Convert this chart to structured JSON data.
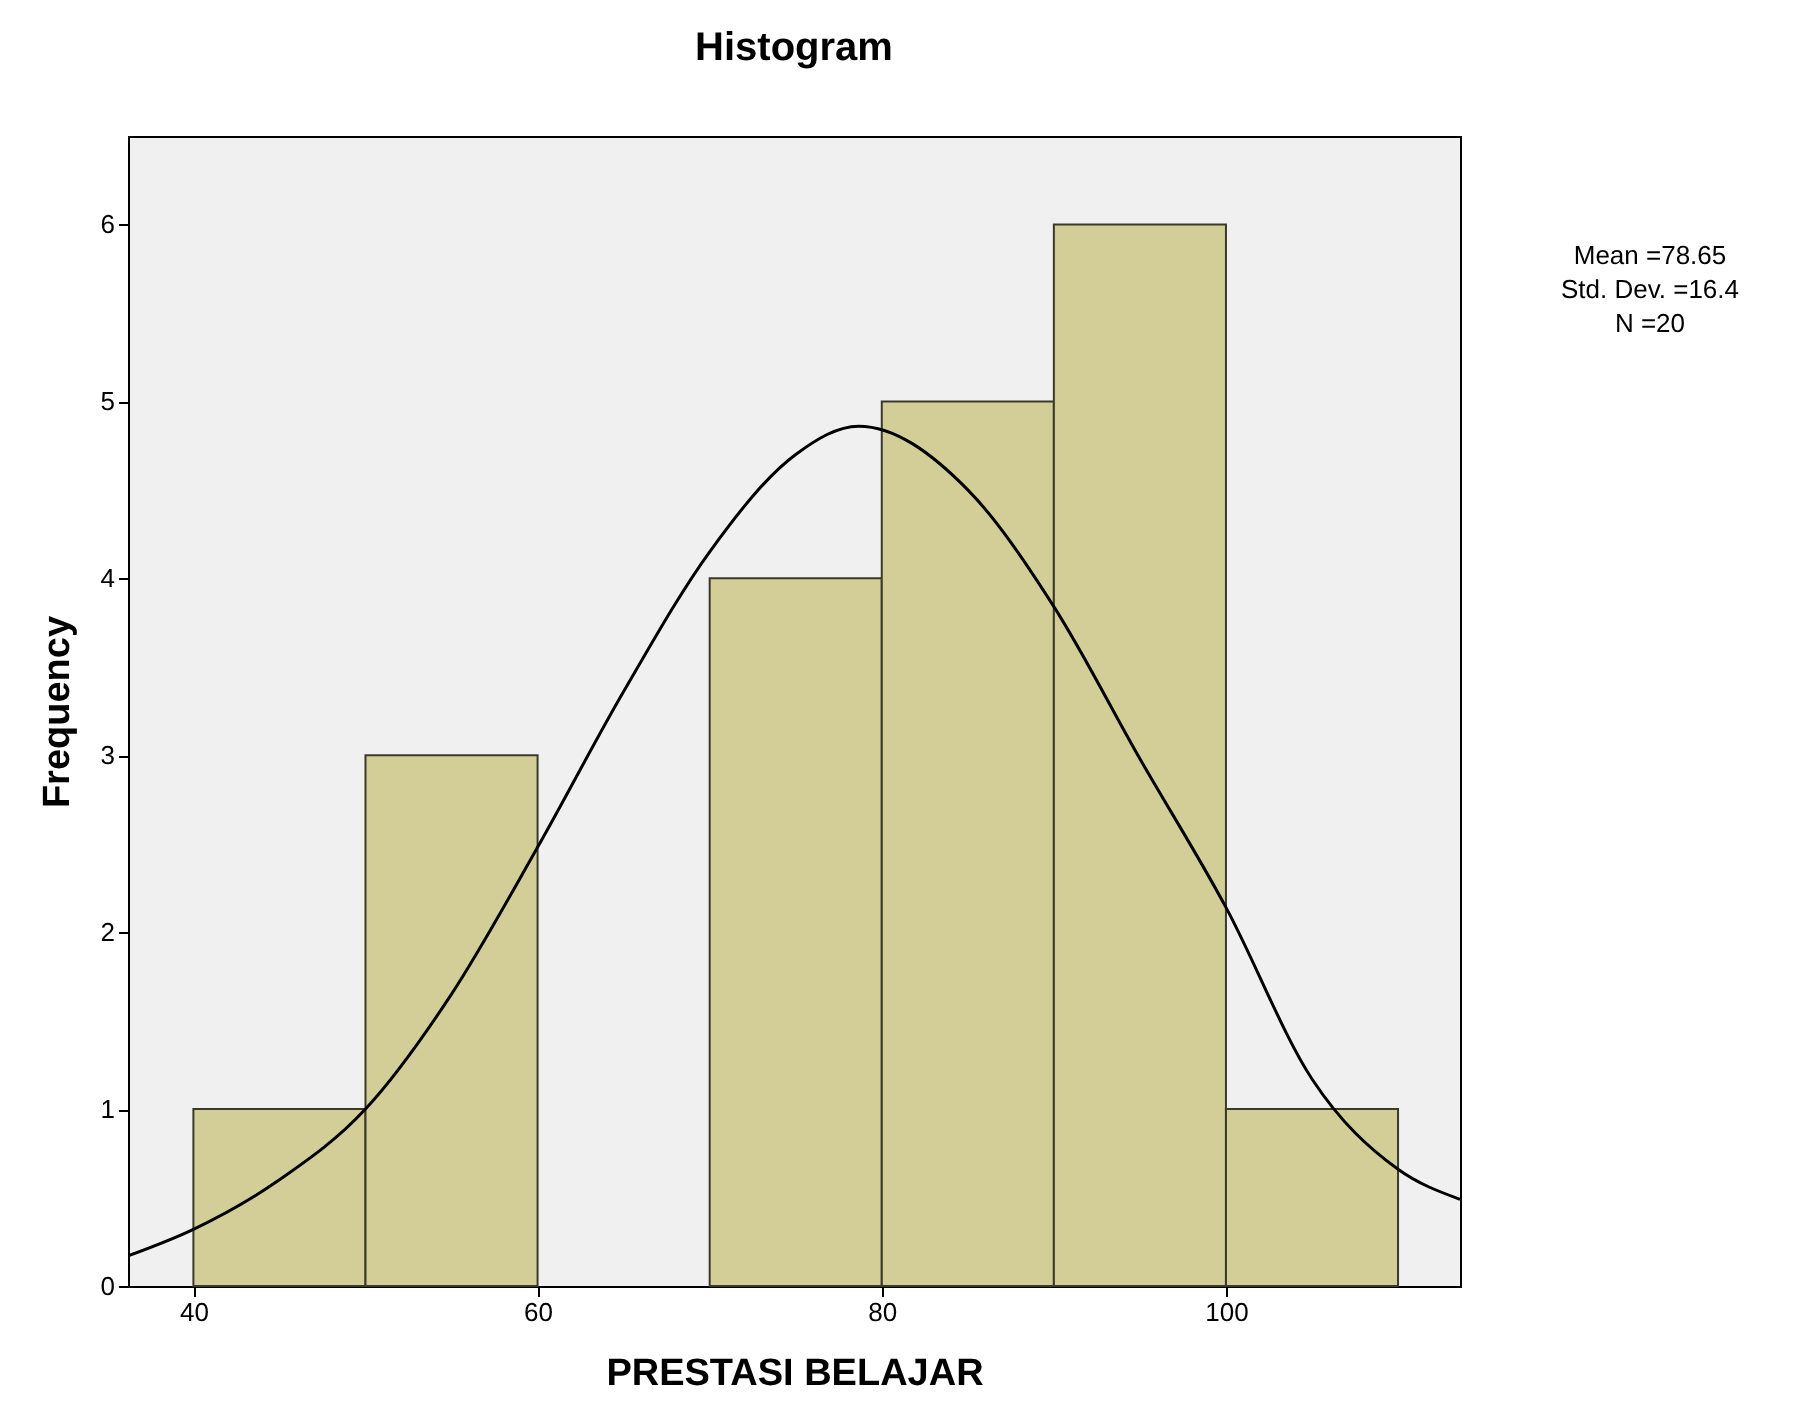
{
  "chart_data": {
    "type": "histogram",
    "title": "Histogram",
    "xlabel": "PRESTASI BELAJAR",
    "ylabel": "Frequency",
    "bins": [
      40,
      50,
      60,
      70,
      80,
      90,
      100,
      110
    ],
    "values": [
      1,
      3,
      0,
      4,
      5,
      6,
      1
    ],
    "color": "#d3ce97",
    "series": [
      {
        "type": "line",
        "color": "#000000",
        "x": [
          36.2,
          40,
          45,
          50,
          55,
          60,
          65,
          70,
          75,
          78.65,
          85,
          90,
          95,
          100,
          105,
          110,
          113.6
        ],
        "values": [
          0.17,
          0.32,
          0.6,
          1.0,
          1.65,
          2.48,
          3.36,
          4.15,
          4.7,
          4.86,
          4.5,
          3.84,
          2.98,
          2.14,
          1.17,
          0.66,
          0.49
        ]
      }
    ],
    "xlim": [
      36.2,
      113.6
    ],
    "ylim": [
      0,
      6.5
    ],
    "xticks": [
      40,
      60,
      80,
      100
    ],
    "yticks": [
      0,
      1,
      2,
      3,
      4,
      5,
      6
    ],
    "grid": false,
    "annotations": [
      "Mean =78.65",
      "Std. Dev. =16.4",
      "N =20"
    ]
  }
}
